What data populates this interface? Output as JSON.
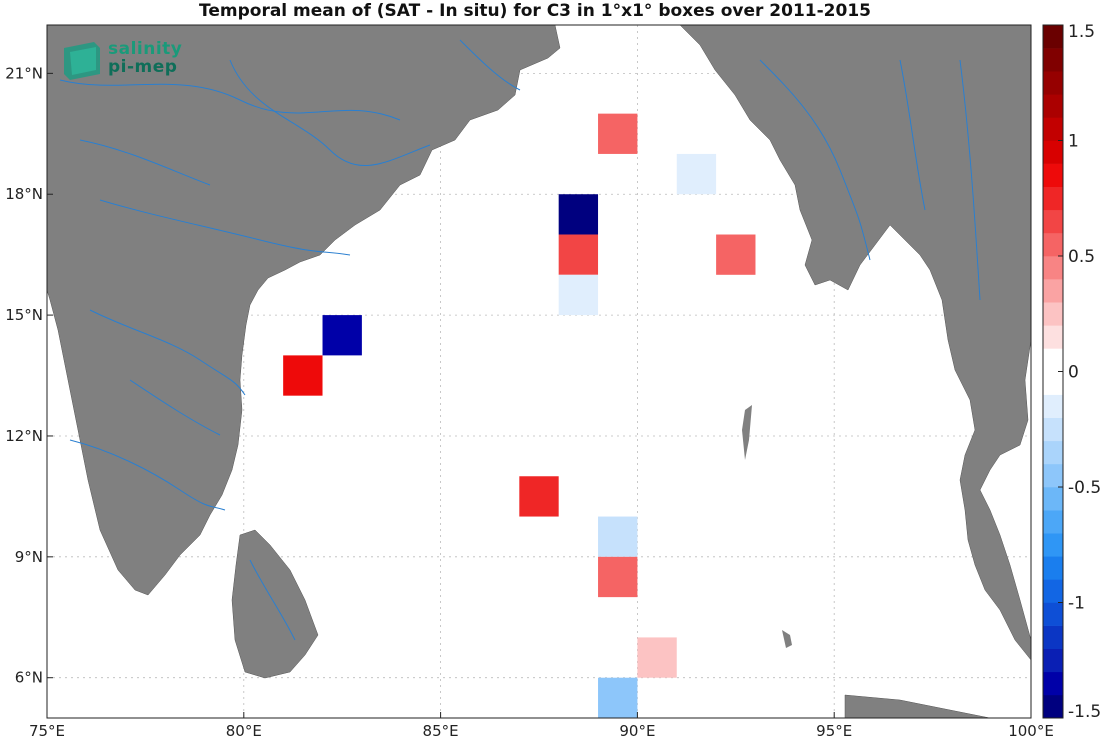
{
  "title": "Temporal mean of (SAT - In situ) for C3 in 1°x1° boxes over 2011-2015",
  "logo": {
    "line1": "salinity",
    "line2": "pi-mep"
  },
  "axes": {
    "lon_ticks": [
      {
        "value": 75,
        "label": "75°E"
      },
      {
        "value": 80,
        "label": "80°E"
      },
      {
        "value": 85,
        "label": "85°E"
      },
      {
        "value": 90,
        "label": "90°E"
      },
      {
        "value": 95,
        "label": "95°E"
      },
      {
        "value": 100,
        "label": "100°E"
      }
    ],
    "lat_ticks": [
      {
        "value": 6,
        "label": "6°N"
      },
      {
        "value": 9,
        "label": "9°N"
      },
      {
        "value": 12,
        "label": "12°N"
      },
      {
        "value": 15,
        "label": "15°N"
      },
      {
        "value": 18,
        "label": "18°N"
      },
      {
        "value": 21,
        "label": "21°N"
      }
    ],
    "lon_range": [
      75,
      100
    ],
    "lat_range": [
      5,
      22.2
    ]
  },
  "colorbar": {
    "range": [
      -1.5,
      1.5
    ],
    "ticks": [
      {
        "value": 1.5,
        "label": "1.5"
      },
      {
        "value": 1,
        "label": "1"
      },
      {
        "value": 0.5,
        "label": "0.5"
      },
      {
        "value": 0,
        "label": "0"
      },
      {
        "value": -0.5,
        "label": "-0.5"
      },
      {
        "value": -1,
        "label": "-1"
      },
      {
        "value": -1.5,
        "label": "-1.5"
      }
    ],
    "colors": [
      "#00007f",
      "#0000a8",
      "#0a1fb4",
      "#0b36c4",
      "#0e4fd6",
      "#1266e4",
      "#1a7eee",
      "#2f96f5",
      "#4ca7f7",
      "#6cb7f8",
      "#8dc6fa",
      "#aad4fb",
      "#c6e1fc",
      "#e0eefd",
      "#ffffff",
      "#ffffff",
      "#fde0e0",
      "#fcc3c3",
      "#faa3a3",
      "#f88484",
      "#f56464",
      "#f24545",
      "#ef2626",
      "#ee0a0a",
      "#d80000",
      "#c20000",
      "#ab0000",
      "#960000",
      "#800000",
      "#6a0000"
    ]
  },
  "land_color": "#808080",
  "river_color": "#2a7fd0",
  "boxes": [
    {
      "lon": 89,
      "lat": 19,
      "value": 0.5
    },
    {
      "lon": 91,
      "lat": 18,
      "value": -0.15
    },
    {
      "lon": 88,
      "lat": 17,
      "value": -1.5
    },
    {
      "lon": 88,
      "lat": 16,
      "value": 0.65
    },
    {
      "lon": 92,
      "lat": 16,
      "value": 0.5
    },
    {
      "lon": 88,
      "lat": 15,
      "value": -0.15
    },
    {
      "lon": 82,
      "lat": 14,
      "value": -1.3
    },
    {
      "lon": 81,
      "lat": 13,
      "value": 0.85
    },
    {
      "lon": 87,
      "lat": 10,
      "value": 0.75
    },
    {
      "lon": 89,
      "lat": 9,
      "value": -0.25
    },
    {
      "lon": 89,
      "lat": 8,
      "value": 0.55
    },
    {
      "lon": 90,
      "lat": 6,
      "value": 0.25
    },
    {
      "lon": 89,
      "lat": 5,
      "value": -0.45
    }
  ]
}
